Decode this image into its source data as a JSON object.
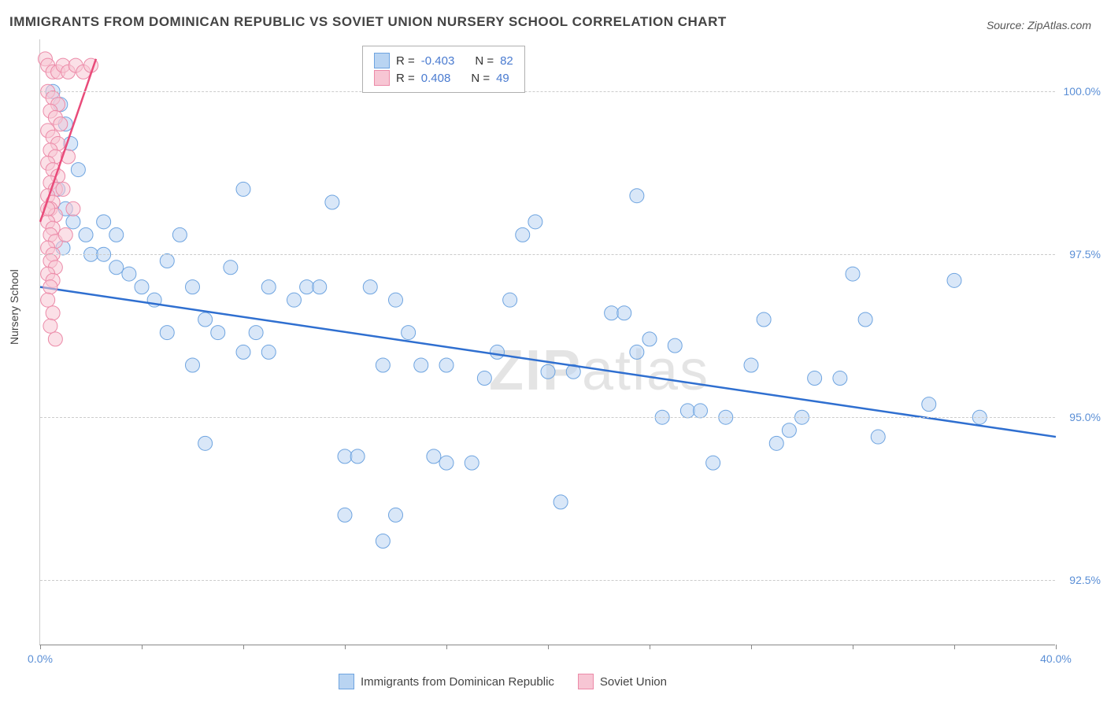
{
  "title": "IMMIGRANTS FROM DOMINICAN REPUBLIC VS SOVIET UNION NURSERY SCHOOL CORRELATION CHART",
  "source": "Source: ZipAtlas.com",
  "watermark": "ZIPatlas",
  "y_axis_label": "Nursery School",
  "chart": {
    "type": "scatter",
    "xlim": [
      0,
      40
    ],
    "ylim": [
      91.5,
      100.8
    ],
    "x_ticks": [
      0,
      4,
      8,
      12,
      16,
      20,
      24,
      28,
      32,
      36,
      40
    ],
    "x_tick_labels": {
      "0": "0.0%",
      "40": "40.0%"
    },
    "y_gridlines": [
      92.5,
      95.0,
      97.5,
      100.0
    ],
    "y_tick_labels": [
      "92.5%",
      "95.0%",
      "97.5%",
      "100.0%"
    ],
    "background_color": "#ffffff",
    "grid_color": "#cccccc",
    "marker_radius": 9,
    "marker_opacity": 0.55,
    "series": [
      {
        "name": "Immigrants from Dominican Republic",
        "color_fill": "#b9d4f2",
        "color_stroke": "#6ea4e0",
        "R": -0.403,
        "N": 82,
        "trend": {
          "x1": 0,
          "y1": 97.0,
          "x2": 40,
          "y2": 94.7,
          "color": "#2f6fd0",
          "width": 2.5
        },
        "points": [
          [
            0.5,
            100.0
          ],
          [
            0.8,
            99.8
          ],
          [
            1.0,
            99.5
          ],
          [
            1.2,
            99.2
          ],
          [
            1.5,
            98.8
          ],
          [
            0.7,
            98.5
          ],
          [
            1.0,
            98.2
          ],
          [
            1.3,
            98.0
          ],
          [
            1.8,
            97.8
          ],
          [
            0.9,
            97.6
          ],
          [
            2.0,
            97.5
          ],
          [
            2.5,
            97.5
          ],
          [
            3.0,
            97.3
          ],
          [
            3.5,
            97.2
          ],
          [
            4.0,
            97.0
          ],
          [
            4.5,
            96.8
          ],
          [
            5.0,
            97.4
          ],
          [
            5.5,
            97.8
          ],
          [
            6.0,
            97.0
          ],
          [
            6.5,
            96.5
          ],
          [
            2.5,
            98.0
          ],
          [
            3.0,
            97.8
          ],
          [
            5.0,
            96.3
          ],
          [
            6.0,
            95.8
          ],
          [
            7.0,
            96.3
          ],
          [
            7.5,
            97.3
          ],
          [
            8.0,
            98.5
          ],
          [
            8.0,
            96.0
          ],
          [
            8.5,
            96.3
          ],
          [
            9.0,
            96.0
          ],
          [
            9.0,
            97.0
          ],
          [
            10.0,
            96.8
          ],
          [
            10.5,
            97.0
          ],
          [
            11.0,
            97.0
          ],
          [
            11.5,
            98.3
          ],
          [
            12.0,
            94.4
          ],
          [
            12.5,
            94.4
          ],
          [
            12.0,
            93.5
          ],
          [
            13.0,
            97.0
          ],
          [
            13.5,
            95.8
          ],
          [
            13.5,
            93.1
          ],
          [
            14.0,
            93.5
          ],
          [
            14.0,
            96.8
          ],
          [
            14.5,
            96.3
          ],
          [
            15.0,
            95.8
          ],
          [
            15.5,
            94.4
          ],
          [
            16.0,
            94.3
          ],
          [
            16.0,
            95.8
          ],
          [
            17.0,
            94.3
          ],
          [
            17.5,
            95.6
          ],
          [
            18.0,
            96.0
          ],
          [
            18.5,
            96.8
          ],
          [
            19.0,
            97.8
          ],
          [
            19.5,
            98.0
          ],
          [
            20.0,
            95.7
          ],
          [
            20.5,
            93.7
          ],
          [
            21.0,
            95.7
          ],
          [
            22.5,
            96.6
          ],
          [
            23.0,
            96.6
          ],
          [
            23.5,
            96.0
          ],
          [
            24.0,
            96.2
          ],
          [
            24.5,
            95.0
          ],
          [
            23.5,
            98.4
          ],
          [
            25.0,
            96.1
          ],
          [
            25.5,
            95.1
          ],
          [
            26.0,
            95.1
          ],
          [
            26.5,
            94.3
          ],
          [
            27.0,
            95.0
          ],
          [
            28.0,
            95.8
          ],
          [
            28.5,
            96.5
          ],
          [
            29.0,
            94.6
          ],
          [
            29.5,
            94.8
          ],
          [
            30.0,
            95.0
          ],
          [
            30.5,
            95.6
          ],
          [
            31.5,
            95.6
          ],
          [
            32.0,
            97.2
          ],
          [
            32.5,
            96.5
          ],
          [
            33.0,
            94.7
          ],
          [
            35.0,
            95.2
          ],
          [
            36.0,
            97.1
          ],
          [
            37.0,
            95.0
          ],
          [
            6.5,
            94.6
          ]
        ]
      },
      {
        "name": "Soviet Union",
        "color_fill": "#f7c6d4",
        "color_stroke": "#ec8aa8",
        "R": 0.408,
        "N": 49,
        "trend": {
          "x1": 0,
          "y1": 98.0,
          "x2": 2.2,
          "y2": 100.5,
          "color": "#e94b7a",
          "width": 2.5
        },
        "points": [
          [
            0.2,
            100.5
          ],
          [
            0.3,
            100.4
          ],
          [
            0.5,
            100.3
          ],
          [
            0.7,
            100.3
          ],
          [
            0.9,
            100.4
          ],
          [
            1.1,
            100.3
          ],
          [
            1.4,
            100.4
          ],
          [
            1.7,
            100.3
          ],
          [
            2.0,
            100.4
          ],
          [
            0.3,
            100.0
          ],
          [
            0.5,
            99.9
          ],
          [
            0.7,
            99.8
          ],
          [
            0.4,
            99.7
          ],
          [
            0.6,
            99.6
          ],
          [
            0.8,
            99.5
          ],
          [
            0.3,
            99.4
          ],
          [
            0.5,
            99.3
          ],
          [
            0.7,
            99.2
          ],
          [
            0.4,
            99.1
          ],
          [
            0.6,
            99.0
          ],
          [
            0.3,
            98.9
          ],
          [
            0.5,
            98.8
          ],
          [
            0.7,
            98.7
          ],
          [
            0.4,
            98.6
          ],
          [
            0.6,
            98.5
          ],
          [
            0.3,
            98.4
          ],
          [
            0.5,
            98.3
          ],
          [
            0.4,
            98.2
          ],
          [
            0.6,
            98.1
          ],
          [
            0.3,
            98.0
          ],
          [
            0.5,
            97.9
          ],
          [
            0.4,
            97.8
          ],
          [
            0.6,
            97.7
          ],
          [
            0.3,
            97.6
          ],
          [
            0.5,
            97.5
          ],
          [
            0.4,
            97.4
          ],
          [
            0.6,
            97.3
          ],
          [
            0.3,
            97.2
          ],
          [
            0.5,
            97.1
          ],
          [
            0.4,
            97.0
          ],
          [
            0.3,
            96.8
          ],
          [
            0.5,
            96.6
          ],
          [
            0.4,
            96.4
          ],
          [
            0.6,
            96.2
          ],
          [
            0.3,
            98.2
          ],
          [
            1.0,
            97.8
          ],
          [
            1.3,
            98.2
          ],
          [
            0.9,
            98.5
          ],
          [
            1.1,
            99.0
          ]
        ]
      }
    ]
  },
  "legend_bottom": [
    {
      "label": "Immigrants from Dominican Republic",
      "swatch": "blue"
    },
    {
      "label": "Soviet Union",
      "swatch": "pink"
    }
  ],
  "legend_top": [
    {
      "swatch": "blue",
      "R_label": "R =",
      "R_value": "-0.403",
      "N_label": "N =",
      "N_value": "82"
    },
    {
      "swatch": "pink",
      "R_label": "R =",
      "R_value": " 0.408",
      "N_label": "N =",
      "N_value": "49"
    }
  ]
}
